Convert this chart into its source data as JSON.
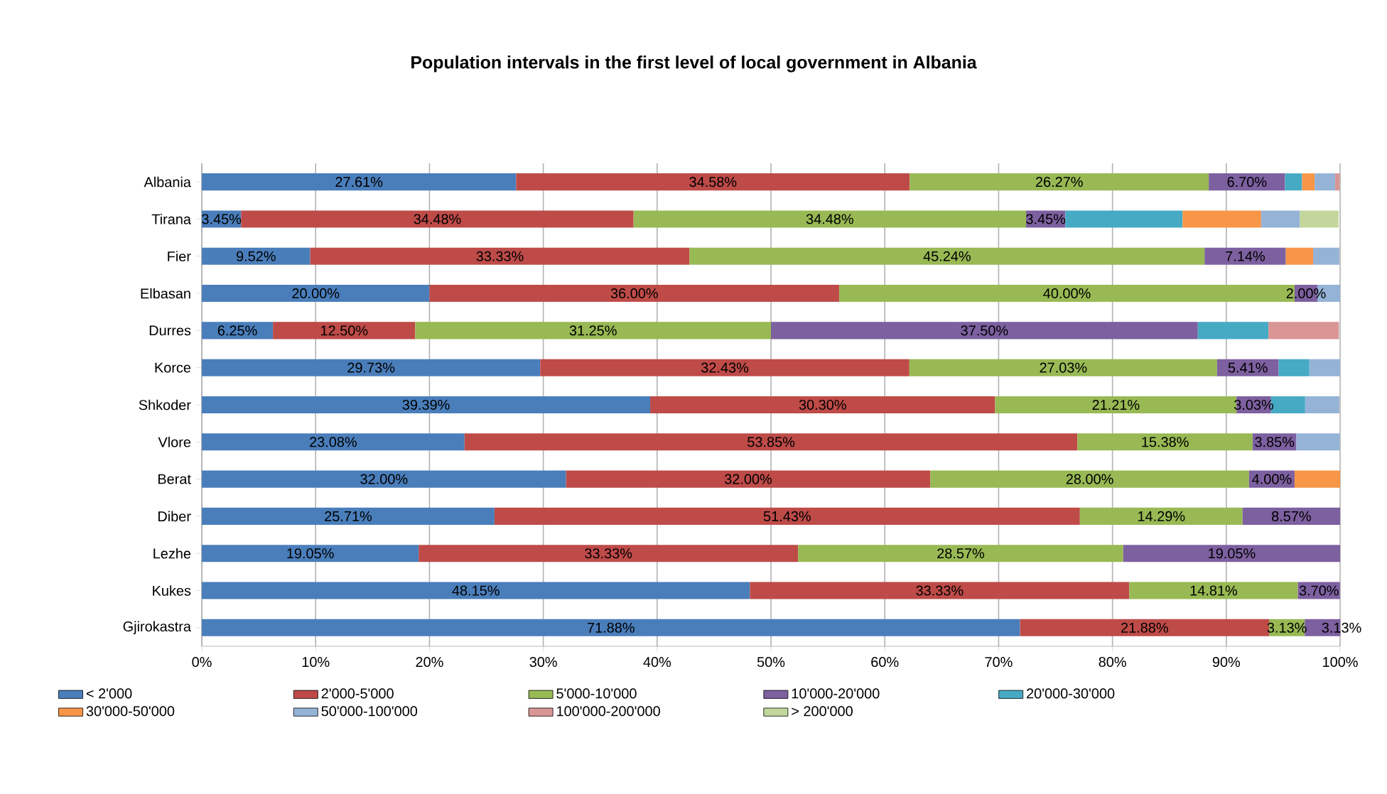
{
  "chart_data": {
    "type": "bar",
    "orientation": "horizontal",
    "stacked": true,
    "title": "Population intervals in the first level of local government in Albania",
    "categories": [
      "Albania",
      "Tirana",
      "Fier",
      "Elbasan",
      "Durres",
      "Korce",
      "Shkoder",
      "Vlore",
      "Berat",
      "Diber",
      "Lezhe",
      "Kukes",
      "Gjirokastra"
    ],
    "xlim": [
      0,
      100
    ],
    "xticks": [
      {
        "value": 0,
        "label": "0%"
      },
      {
        "value": 10,
        "label": "10%"
      },
      {
        "value": 20,
        "label": "20%"
      },
      {
        "value": 30,
        "label": "30%"
      },
      {
        "value": 40,
        "label": "40%"
      },
      {
        "value": 50,
        "label": "50%"
      },
      {
        "value": 60,
        "label": "60%"
      },
      {
        "value": 70,
        "label": "70%"
      },
      {
        "value": 80,
        "label": "80%"
      },
      {
        "value": 90,
        "label": "90%"
      },
      {
        "value": 100,
        "label": "100%"
      }
    ],
    "grid": "x",
    "legend": "bottom",
    "series": [
      {
        "name": "< 2'000",
        "color": "#4a7ebb",
        "values": [
          27.61,
          3.45,
          9.52,
          20.0,
          6.25,
          29.73,
          39.39,
          23.08,
          32.0,
          25.71,
          19.05,
          48.15,
          71.88
        ],
        "value_labels": [
          "27.61%",
          "3.45%",
          "9.52%",
          "20.00%",
          "6.25%",
          "29.73%",
          "39.39%",
          "23.08%",
          "32.00%",
          "25.71%",
          "19.05%",
          "48.15%",
          "71.88%"
        ]
      },
      {
        "name": "2'000-5'000",
        "color": "#be4b48",
        "values": [
          34.58,
          34.48,
          33.33,
          36.0,
          12.5,
          32.43,
          30.3,
          53.85,
          32.0,
          51.43,
          33.33,
          33.33,
          21.88
        ],
        "value_labels": [
          "34.58%",
          "34.48%",
          "33.33%",
          "36.00%",
          "12.50%",
          "32.43%",
          "30.30%",
          "53.85%",
          "32.00%",
          "51.43%",
          "33.33%",
          "33.33%",
          "21.88%"
        ]
      },
      {
        "name": "5'000-10'000",
        "color": "#98b954",
        "values": [
          26.27,
          34.48,
          45.24,
          40.0,
          31.25,
          27.03,
          21.21,
          15.38,
          28.0,
          14.29,
          28.57,
          14.81,
          3.13
        ],
        "value_labels": [
          "26.27%",
          "34.48%",
          "45.24%",
          "40.00%",
          "31.25%",
          "27.03%",
          "21.21%",
          "15.38%",
          "28.00%",
          "14.29%",
          "28.57%",
          "14.81%",
          "3.13%"
        ]
      },
      {
        "name": "10'000-20'000",
        "color": "#7d60a0",
        "values": [
          6.7,
          3.45,
          7.14,
          2.0,
          37.5,
          5.41,
          3.03,
          3.85,
          4.0,
          8.57,
          19.05,
          3.7,
          3.13
        ],
        "value_labels": [
          "6.70%",
          "3.45%",
          "7.14%",
          "2.00%",
          "37.50%",
          "5.41%",
          "3.03%",
          "3.85%",
          "4.00%",
          "8.57%",
          "19.05%",
          "3.70%",
          "3.13%"
        ]
      },
      {
        "name": "20'000-30'000",
        "color": "#46aac5",
        "values": [
          1.5,
          10.3,
          null,
          null,
          6.2,
          2.7,
          3.0,
          null,
          null,
          null,
          null,
          null,
          null
        ]
      },
      {
        "name": "30'000-50'000",
        "color": "#f79646",
        "values": [
          1.1,
          6.9,
          2.4,
          null,
          null,
          null,
          null,
          null,
          4.0,
          null,
          null,
          null,
          null
        ]
      },
      {
        "name": "50'000-100'000",
        "color": "#95b3d7",
        "values": [
          1.8,
          3.4,
          2.3,
          2.0,
          null,
          2.7,
          3.0,
          3.8,
          null,
          null,
          null,
          null,
          null
        ]
      },
      {
        "name": "100'000-200'000",
        "color": "#d99694",
        "values": [
          0.4,
          null,
          null,
          null,
          6.2,
          null,
          null,
          null,
          null,
          null,
          null,
          null,
          null
        ]
      },
      {
        "name": "> 200'000",
        "color": "#c3d69b",
        "values": [
          null,
          3.4,
          null,
          null,
          null,
          null,
          null,
          null,
          null,
          null,
          null,
          null,
          null
        ]
      }
    ]
  }
}
